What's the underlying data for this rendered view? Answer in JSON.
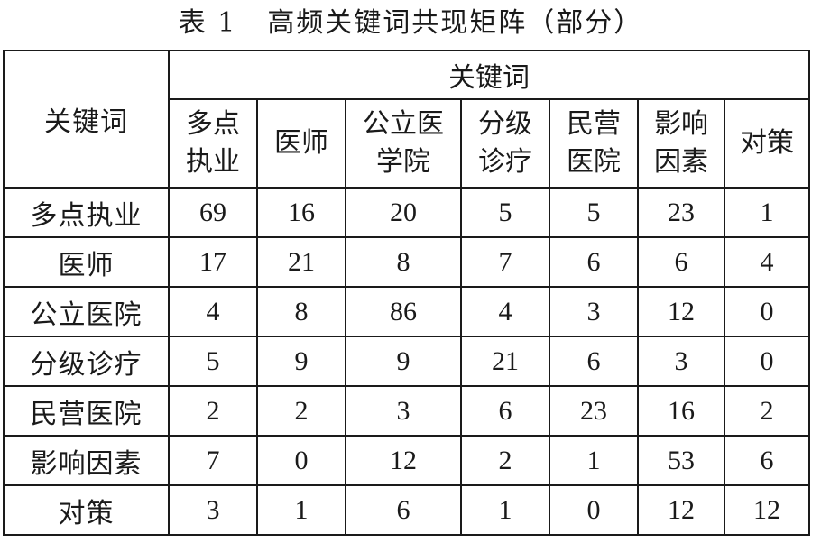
{
  "caption": {
    "number": "表 1",
    "title": "高频关键词共现矩阵（部分）"
  },
  "table": {
    "corner_label": "关键词",
    "group_label": "关键词",
    "columns": [
      {
        "line1": "多点",
        "line2": "执业"
      },
      {
        "line1": "医师",
        "line2": ""
      },
      {
        "line1": "公立医",
        "line2": "学院"
      },
      {
        "line1": "分级",
        "line2": "诊疗"
      },
      {
        "line1": "民营",
        "line2": "医院"
      },
      {
        "line1": "影响",
        "line2": "因素"
      },
      {
        "line1": "对策",
        "line2": ""
      }
    ],
    "rows": [
      {
        "label": "多点执业",
        "values": [
          "69",
          "16",
          "20",
          "5",
          "5",
          "23",
          "1"
        ]
      },
      {
        "label": "医师",
        "values": [
          "17",
          "21",
          "8",
          "7",
          "6",
          "6",
          "4"
        ]
      },
      {
        "label": "公立医院",
        "values": [
          "4",
          "8",
          "86",
          "4",
          "3",
          "12",
          "0"
        ]
      },
      {
        "label": "分级诊疗",
        "values": [
          "5",
          "9",
          "9",
          "21",
          "6",
          "3",
          "0"
        ]
      },
      {
        "label": "民营医院",
        "values": [
          "2",
          "2",
          "3",
          "6",
          "23",
          "16",
          "2"
        ]
      },
      {
        "label": "影响因素",
        "values": [
          "7",
          "0",
          "12",
          "2",
          "1",
          "53",
          "6"
        ]
      },
      {
        "label": "对策",
        "values": [
          "3",
          "1",
          "6",
          "1",
          "0",
          "12",
          "12"
        ]
      }
    ]
  }
}
